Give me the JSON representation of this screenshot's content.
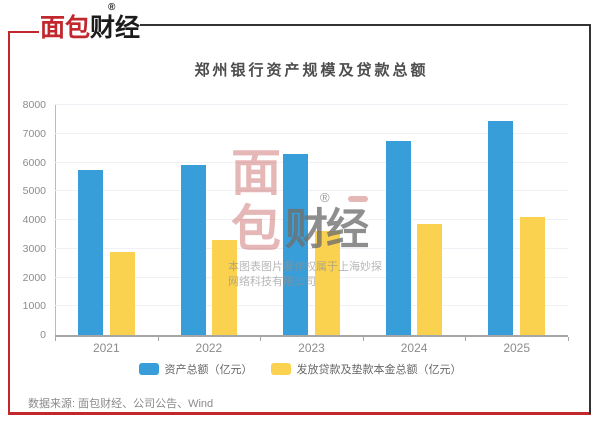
{
  "header": {
    "logo": {
      "red_text": "面包",
      "dark_text": "财经",
      "registered_mark": "®"
    }
  },
  "chart_data": {
    "type": "bar",
    "title": "郑州银行资产规模及贷款总额",
    "categories": [
      "2021",
      "2022",
      "2023",
      "2024",
      "2025"
    ],
    "series": [
      {
        "key": "assets",
        "name": "资产总额（亿元）",
        "color": "#389ed9",
        "values": [
          5750,
          5900,
          6300,
          6760,
          7430
        ]
      },
      {
        "key": "loans",
        "name": "发放贷款及垫款本金总额（亿元）",
        "color": "#fbd24f",
        "values": [
          2900,
          3310,
          3630,
          3860,
          4100
        ]
      }
    ],
    "ylim": [
      0,
      8000
    ],
    "ytick_step": 1000,
    "yticks": [
      0,
      1000,
      2000,
      3000,
      4000,
      5000,
      6000,
      7000,
      8000
    ],
    "grid": true,
    "legend_position": "bottom",
    "xlabel": "",
    "ylabel": ""
  },
  "watermark": {
    "stacked_chars": [
      "面",
      "包"
    ],
    "gray_text": "财经",
    "registered_mark": "®",
    "copyright_line1": "本图表图片著作权属于上海妙探",
    "copyright_line2": "网络科技有限公司"
  },
  "footer": {
    "source_text": "数据来源: 面包财经、公司公告、Wind"
  },
  "colors": {
    "brand_red": "#c1272d",
    "frame_dark": "#333333",
    "series_blue": "#389ed9",
    "series_yellow": "#fbd24f",
    "grid_line": "#eef1f6",
    "axis_line": "#a6a6a6"
  }
}
